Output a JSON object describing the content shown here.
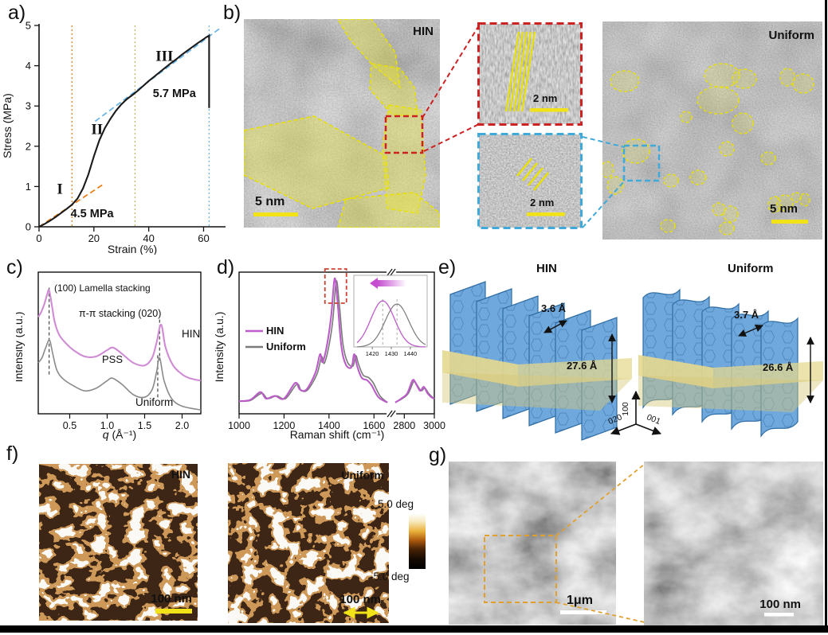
{
  "panels": {
    "a": "a)",
    "b": "b)",
    "c": "c)",
    "d": "d)",
    "e": "e)",
    "f": "f)",
    "g": "g)"
  },
  "colors": {
    "orange": "#E8821E",
    "olive": "#C4B565",
    "lightblue": "#6FB7E8",
    "blue_text": "#4A9FD8",
    "magenta_c": "#CF8BD3",
    "magenta_d": "#BB5CC9",
    "gray_curve": "#8a8a8a",
    "annotation_yellow": "#F2E318",
    "red_box": "#CC2222",
    "cyan_box": "#3FA9D9",
    "gold_box": "#E0A030",
    "sheet_blue": "#6FA8DC",
    "slab_yellow": "#E5D88F"
  },
  "chart_data": [
    {
      "id": "stress_strain",
      "type": "line",
      "title": "",
      "xlabel": "Strain (%)",
      "ylabel": "Stress (MPa)",
      "xlim": [
        0,
        68
      ],
      "ylim": [
        0,
        5
      ],
      "xticks": [
        "0",
        "20",
        "40",
        "60"
      ],
      "yticks": [
        "0",
        "1",
        "2",
        "3",
        "4",
        "5"
      ],
      "series": [
        {
          "name": "stress-strain curve",
          "color": "#1a1a1a",
          "points": [
            [
              0,
              0
            ],
            [
              2,
              0.07
            ],
            [
              4,
              0.15
            ],
            [
              6,
              0.24
            ],
            [
              8,
              0.34
            ],
            [
              10,
              0.44
            ],
            [
              12,
              0.55
            ],
            [
              14,
              0.7
            ],
            [
              16,
              0.95
            ],
            [
              18,
              1.3
            ],
            [
              20,
              1.75
            ],
            [
              22,
              2.15
            ],
            [
              24,
              2.45
            ],
            [
              26,
              2.68
            ],
            [
              28,
              2.88
            ],
            [
              30,
              3.04
            ],
            [
              32,
              3.17
            ],
            [
              34,
              3.27
            ],
            [
              36,
              3.38
            ],
            [
              38,
              3.5
            ],
            [
              40,
              3.62
            ],
            [
              42,
              3.73
            ],
            [
              44,
              3.84
            ],
            [
              46,
              3.95
            ],
            [
              48,
              4.06
            ],
            [
              50,
              4.16
            ],
            [
              52,
              4.27
            ],
            [
              54,
              4.37
            ],
            [
              56,
              4.47
            ],
            [
              58,
              4.57
            ],
            [
              60,
              4.66
            ],
            [
              61,
              4.71
            ],
            [
              62,
              4.75
            ],
            [
              62,
              2.95
            ]
          ]
        },
        {
          "name": "modulus fit 4.5 MPa",
          "color": "#E8821E",
          "dash": true,
          "points": [
            [
              0,
              0
            ],
            [
              23.5,
              1.06
            ]
          ]
        },
        {
          "name": "modulus fit 5.7 MPa",
          "color": "#6FB7E8",
          "dash": true,
          "points": [
            [
              20.5,
              2.62
            ],
            [
              66,
              4.93
            ]
          ]
        }
      ],
      "vlines": [
        {
          "x": 12,
          "color": "#E8821E"
        },
        {
          "x": 35,
          "color": "#C4B565"
        },
        {
          "x": 62,
          "color": "#6FB7E8"
        }
      ],
      "annotations": [
        {
          "text": "I",
          "x": 6.5,
          "y": 0.82,
          "serif": true
        },
        {
          "text": "II",
          "x": 19,
          "y": 2.3,
          "serif": true
        },
        {
          "text": "III",
          "x": 42.5,
          "y": 4.12,
          "serif": true
        },
        {
          "text": "4.5 MPa",
          "x": 11.5,
          "y": 0.24,
          "color": "#E8821E",
          "size": 14.5
        },
        {
          "text": "5.7 MPa",
          "x": 41.5,
          "y": 3.22,
          "color": "#4A9FD8",
          "size": 14.5
        }
      ]
    },
    {
      "id": "giwaxs",
      "type": "line",
      "xlabel_q": "q",
      "xlabel_rest": " (Å⁻¹)",
      "ylabel": "Intensity  (a.u.)",
      "xlim": [
        0.08,
        2.25
      ],
      "xticks": [
        "0.5",
        "1.0",
        "1.5",
        "2.0"
      ],
      "xtick_vals": [
        0.5,
        1.0,
        1.5,
        2.0
      ],
      "grid": false,
      "legend_position": "on-curve",
      "peak_markers": [
        {
          "x": 0.225,
          "v1": 0.99,
          "v2": 0.3
        },
        {
          "x": 1.7,
          "v1": 0.74,
          "v2": 0.42
        },
        {
          "x": 1.675,
          "v1": 0.46,
          "v2": 0.12
        }
      ],
      "series": [
        {
          "name": "HIN",
          "color": "#CF8BD3",
          "points": [
            [
              0.08,
              0.76
            ],
            [
              0.12,
              0.8
            ],
            [
              0.16,
              0.86
            ],
            [
              0.2,
              0.94
            ],
            [
              0.225,
              0.97
            ],
            [
              0.26,
              0.86
            ],
            [
              0.3,
              0.72
            ],
            [
              0.36,
              0.62
            ],
            [
              0.44,
              0.56
            ],
            [
              0.55,
              0.5
            ],
            [
              0.7,
              0.45
            ],
            [
              0.85,
              0.45
            ],
            [
              1.0,
              0.5
            ],
            [
              1.08,
              0.52
            ],
            [
              1.2,
              0.47
            ],
            [
              1.35,
              0.4
            ],
            [
              1.5,
              0.38
            ],
            [
              1.6,
              0.44
            ],
            [
              1.66,
              0.56
            ],
            [
              1.72,
              0.7
            ],
            [
              1.78,
              0.52
            ],
            [
              1.88,
              0.38
            ],
            [
              2.0,
              0.31
            ],
            [
              2.1,
              0.28
            ],
            [
              2.25,
              0.26
            ]
          ]
        },
        {
          "name": "Uniform",
          "color": "#8a8a8a",
          "points": [
            [
              0.08,
              0.4
            ],
            [
              0.13,
              0.44
            ],
            [
              0.18,
              0.52
            ],
            [
              0.23,
              0.58
            ],
            [
              0.27,
              0.48
            ],
            [
              0.33,
              0.34
            ],
            [
              0.42,
              0.27
            ],
            [
              0.55,
              0.22
            ],
            [
              0.7,
              0.18
            ],
            [
              0.85,
              0.2
            ],
            [
              1.0,
              0.26
            ],
            [
              1.07,
              0.28
            ],
            [
              1.2,
              0.23
            ],
            [
              1.35,
              0.15
            ],
            [
              1.5,
              0.13
            ],
            [
              1.6,
              0.19
            ],
            [
              1.66,
              0.33
            ],
            [
              1.7,
              0.44
            ],
            [
              1.76,
              0.26
            ],
            [
              1.86,
              0.12
            ],
            [
              2.0,
              0.06
            ],
            [
              2.25,
              0.03
            ]
          ]
        }
      ],
      "annotations": [
        {
          "text": "(100) Lamella  stacking",
          "x": 48,
          "y": 30,
          "size": 12
        },
        {
          "text": "π-π stacking (020)",
          "x": 79,
          "y": 62,
          "size": 12.5
        },
        {
          "text": "PSS",
          "x": 108,
          "y": 120,
          "size": 13
        },
        {
          "text": "HIN",
          "x": 208,
          "y": 88,
          "size": 13.5,
          "color": "#CF8BD3"
        },
        {
          "text": "Uniform",
          "x": 150,
          "y": 174,
          "size": 13.5
        }
      ]
    },
    {
      "id": "raman",
      "type": "line",
      "xlabel": "Raman shift (cm⁻¹)",
      "ylabel": "Intensity (a.u.)",
      "axis_break": [
        1660,
        2740
      ],
      "xticks": [
        {
          "v": 1000,
          "t": "1000"
        },
        {
          "v": 1200,
          "t": "1200"
        },
        {
          "v": 1400,
          "t": "1400"
        },
        {
          "v": 1600,
          "t": "1600"
        },
        {
          "v": 2800,
          "t": "2800"
        },
        {
          "v": 3000,
          "t": "3000"
        }
      ],
      "legend": [
        {
          "label": "HIN",
          "color": "#BB5CC9"
        },
        {
          "label": "Uniform",
          "color": "#7a7a7a"
        }
      ],
      "series": [
        {
          "name": "Uniform",
          "color": "#7a7a7a",
          "points": [
            [
              1000,
              0.06
            ],
            [
              1050,
              0.065
            ],
            [
              1100,
              0.12
            ],
            [
              1127,
              0.08
            ],
            [
              1167,
              0.1
            ],
            [
              1207,
              0.08
            ],
            [
              1257,
              0.19
            ],
            [
              1277,
              0.14
            ],
            [
              1307,
              0.15
            ],
            [
              1347,
              0.27
            ],
            [
              1367,
              0.4
            ],
            [
              1379,
              0.35
            ],
            [
              1399,
              0.48
            ],
            [
              1417,
              0.68
            ],
            [
              1432,
              0.98
            ],
            [
              1445,
              0.82
            ],
            [
              1462,
              0.5
            ],
            [
              1482,
              0.36
            ],
            [
              1507,
              0.33
            ],
            [
              1519,
              0.41
            ],
            [
              1532,
              0.34
            ],
            [
              1552,
              0.26
            ],
            [
              1577,
              0.24
            ],
            [
              1597,
              0.2
            ],
            [
              1627,
              0.1
            ],
            [
              1660,
              0.05
            ],
            [
              2740,
              0.05
            ],
            [
              2787,
              0.08
            ],
            [
              2827,
              0.12
            ],
            [
              2862,
              0.21
            ],
            [
              2882,
              0.19
            ],
            [
              2912,
              0.14
            ],
            [
              2937,
              0.16
            ],
            [
              2962,
              0.12
            ],
            [
              2987,
              0.09
            ],
            [
              3000,
              0.08
            ]
          ]
        },
        {
          "name": "HIN",
          "color": "#BB5CC9",
          "points": [
            [
              1000,
              0.06
            ],
            [
              1050,
              0.07
            ],
            [
              1095,
              0.13
            ],
            [
              1120,
              0.08
            ],
            [
              1160,
              0.1
            ],
            [
              1200,
              0.08
            ],
            [
              1250,
              0.2
            ],
            [
              1270,
              0.15
            ],
            [
              1300,
              0.15
            ],
            [
              1340,
              0.28
            ],
            [
              1360,
              0.42
            ],
            [
              1372,
              0.36
            ],
            [
              1392,
              0.5
            ],
            [
              1410,
              0.72
            ],
            [
              1425,
              1.0
            ],
            [
              1438,
              0.82
            ],
            [
              1455,
              0.48
            ],
            [
              1475,
              0.34
            ],
            [
              1500,
              0.32
            ],
            [
              1512,
              0.42
            ],
            [
              1525,
              0.33
            ],
            [
              1545,
              0.24
            ],
            [
              1570,
              0.22
            ],
            [
              1590,
              0.18
            ],
            [
              1620,
              0.09
            ],
            [
              1660,
              0.05
            ],
            [
              2740,
              0.05
            ],
            [
              2780,
              0.08
            ],
            [
              2820,
              0.12
            ],
            [
              2855,
              0.22
            ],
            [
              2875,
              0.2
            ],
            [
              2905,
              0.14
            ],
            [
              2930,
              0.17
            ],
            [
              2955,
              0.12
            ],
            [
              2980,
              0.09
            ],
            [
              3000,
              0.08
            ]
          ]
        }
      ],
      "inset": {
        "xticks": [
          "1420",
          "1430",
          "1440"
        ],
        "xtick_vals": [
          1420,
          1430,
          1440
        ],
        "hin_peak": 1425.5,
        "uniform_peak": 1433,
        "shift_direction": "left"
      }
    }
  ],
  "panel_b": {
    "hin_label": "HIN",
    "uniform_label": "Uniform",
    "scale_main": "5 nm",
    "scale_inset_top": "2 nm",
    "scale_inset_bottom": "2 nm",
    "scale_right": "5 nm"
  },
  "panel_e": {
    "hin_title": "HIN",
    "uniform_title": "Uniform",
    "hin_pi_spacing": "3.6 Å",
    "uniform_pi_spacing": "3.7 Å",
    "hin_lamella": "27.6 Å",
    "uniform_lamella": "26.6 Å",
    "axis_100": "100",
    "axis_020": "020",
    "axis_001": "001"
  },
  "panel_f": {
    "hin_label": "HIN",
    "uniform_label": "Uniform",
    "scale_hin": "100 nm",
    "scale_uniform": "100 nm",
    "colorbar_max": "5.0 deg",
    "colorbar_min": "-5.0 deg"
  },
  "panel_g": {
    "scale_left": "1μm",
    "scale_right": "100 nm"
  }
}
